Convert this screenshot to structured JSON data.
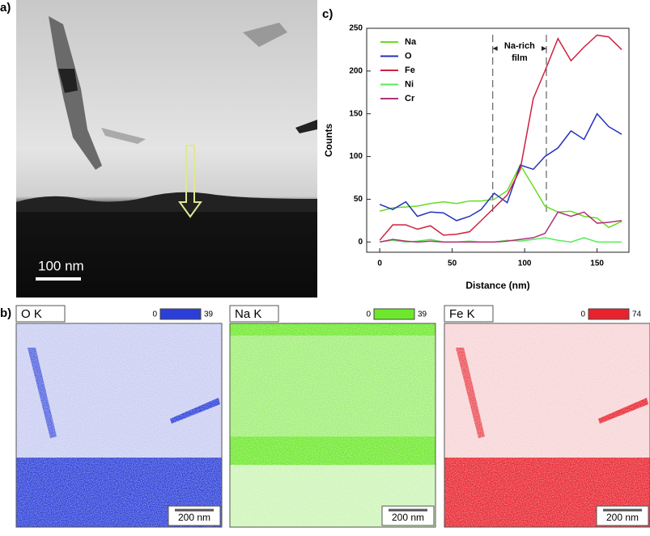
{
  "panels": {
    "a": {
      "label": "a)",
      "scale_bar": "100 nm"
    },
    "b": {
      "label": "b)",
      "maps": [
        {
          "title": "O K",
          "min": 0,
          "max": 39,
          "color": "#2b3fd8",
          "tint": "#c9cdf2",
          "scale_bar": "200 nm"
        },
        {
          "title": "Na K",
          "min": 0,
          "max": 39,
          "color": "#6ee82c",
          "tint": "#def7cf",
          "scale_bar": "200 nm"
        },
        {
          "title": "Fe K",
          "min": 0,
          "max": 74,
          "color": "#e8232e",
          "tint": "#f7d4d6",
          "scale_bar": "200 nm"
        }
      ]
    },
    "c": {
      "label": "c)"
    }
  },
  "chart_data": {
    "type": "line",
    "xlabel": "Distance (nm)",
    "ylabel": "Counts",
    "annotation": [
      "Na-rich",
      "film"
    ],
    "film_bounds": [
      78,
      115
    ],
    "x": [
      0,
      9,
      18,
      26,
      35,
      44,
      53,
      62,
      70,
      79,
      88,
      97,
      106,
      114,
      123,
      132,
      141,
      150,
      158,
      167
    ],
    "xlim": [
      -9,
      172
    ],
    "xticks": [
      0,
      50,
      100,
      150
    ],
    "ylim": [
      -12,
      250
    ],
    "yticks": [
      0,
      50,
      100,
      150,
      200,
      250
    ],
    "series": [
      {
        "name": "Na",
        "color": "#66dd22",
        "values": [
          36,
          40,
          41,
          42,
          45,
          47,
          45,
          48,
          48,
          50,
          60,
          90,
          65,
          42,
          35,
          36,
          30,
          28,
          17,
          24
        ]
      },
      {
        "name": "O",
        "color": "#2233bb",
        "values": [
          44,
          38,
          47,
          30,
          35,
          34,
          25,
          30,
          38,
          57,
          46,
          90,
          85,
          100,
          110,
          130,
          120,
          150,
          135,
          126
        ]
      },
      {
        "name": "Fe",
        "color": "#d02040",
        "values": [
          2,
          20,
          20,
          15,
          19,
          8,
          9,
          12,
          25,
          40,
          55,
          85,
          168,
          200,
          238,
          212,
          228,
          242,
          240,
          225
        ]
      },
      {
        "name": "Ni",
        "color": "#55ee55",
        "values": [
          0,
          2,
          0,
          1,
          3,
          0,
          0,
          1,
          0,
          0,
          2,
          1,
          3,
          5,
          2,
          0,
          5,
          0,
          0,
          0
        ]
      },
      {
        "name": "Cr",
        "color": "#b0307a",
        "values": [
          0,
          3,
          1,
          0,
          1,
          0,
          0,
          0,
          0,
          0,
          1,
          3,
          5,
          10,
          35,
          30,
          35,
          22,
          23,
          25
        ]
      }
    ]
  }
}
